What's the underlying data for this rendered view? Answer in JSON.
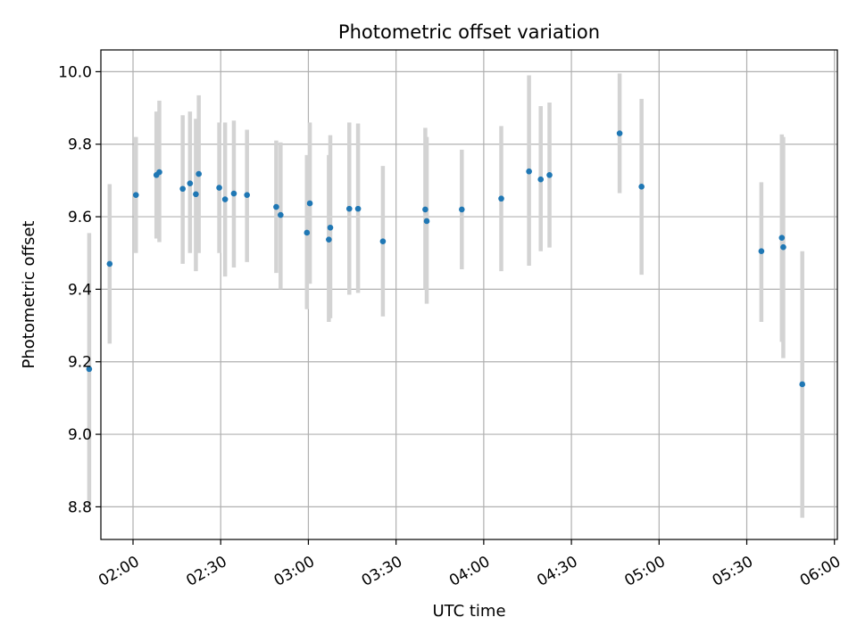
{
  "chart_data": {
    "type": "scatter",
    "title": "Photometric offset variation",
    "xlabel": "UTC time",
    "ylabel": "Photometric offset",
    "x_ticks": [
      "02:00",
      "02:30",
      "03:00",
      "03:30",
      "04:00",
      "04:30",
      "05:00",
      "05:30",
      "06:00"
    ],
    "y_ticks": [
      "8.8",
      "9.0",
      "9.2",
      "9.4",
      "9.6",
      "9.8",
      "10.0"
    ],
    "xlim": [
      "01:49",
      "06:01"
    ],
    "ylim": [
      8.71,
      10.06
    ],
    "grid": true,
    "marker_color": "#1f77b4",
    "errorbar_color": "#d3d3d3",
    "points": [
      {
        "x": "01:45:00",
        "y": 9.18,
        "ylo": 8.8,
        "yhi": 9.555
      },
      {
        "x": "01:52:00",
        "y": 9.47,
        "ylo": 9.25,
        "yhi": 9.69
      },
      {
        "x": "02:01:00",
        "y": 9.66,
        "ylo": 9.5,
        "yhi": 9.82
      },
      {
        "x": "02:08:00",
        "y": 9.715,
        "ylo": 9.54,
        "yhi": 9.89
      },
      {
        "x": "02:09:00",
        "y": 9.723,
        "ylo": 9.53,
        "yhi": 9.92
      },
      {
        "x": "02:17:00",
        "y": 9.677,
        "ylo": 9.47,
        "yhi": 9.88
      },
      {
        "x": "02:19:30",
        "y": 9.692,
        "ylo": 9.5,
        "yhi": 9.89
      },
      {
        "x": "02:21:30",
        "y": 9.662,
        "ylo": 9.45,
        "yhi": 9.87
      },
      {
        "x": "02:22:30",
        "y": 9.718,
        "ylo": 9.5,
        "yhi": 9.935
      },
      {
        "x": "02:29:30",
        "y": 9.68,
        "ylo": 9.5,
        "yhi": 9.86
      },
      {
        "x": "02:31:30",
        "y": 9.648,
        "ylo": 9.435,
        "yhi": 9.86
      },
      {
        "x": "02:34:30",
        "y": 9.664,
        "ylo": 9.46,
        "yhi": 9.865
      },
      {
        "x": "02:39:00",
        "y": 9.66,
        "ylo": 9.475,
        "yhi": 9.84
      },
      {
        "x": "02:49:00",
        "y": 9.627,
        "ylo": 9.445,
        "yhi": 9.81
      },
      {
        "x": "02:50:30",
        "y": 9.605,
        "ylo": 9.4,
        "yhi": 9.805
      },
      {
        "x": "02:59:30",
        "y": 9.556,
        "ylo": 9.345,
        "yhi": 9.77
      },
      {
        "x": "03:00:30",
        "y": 9.637,
        "ylo": 9.415,
        "yhi": 9.86
      },
      {
        "x": "03:07:00",
        "y": 9.537,
        "ylo": 9.31,
        "yhi": 9.77
      },
      {
        "x": "03:07:30",
        "y": 9.57,
        "ylo": 9.32,
        "yhi": 9.825
      },
      {
        "x": "03:14:00",
        "y": 9.622,
        "ylo": 9.385,
        "yhi": 9.86
      },
      {
        "x": "03:17:00",
        "y": 9.622,
        "ylo": 9.39,
        "yhi": 9.857
      },
      {
        "x": "03:25:30",
        "y": 9.532,
        "ylo": 9.325,
        "yhi": 9.74
      },
      {
        "x": "03:40:00",
        "y": 9.62,
        "ylo": 9.4,
        "yhi": 9.845
      },
      {
        "x": "03:40:30",
        "y": 9.588,
        "ylo": 9.36,
        "yhi": 9.82
      },
      {
        "x": "03:52:30",
        "y": 9.62,
        "ylo": 9.455,
        "yhi": 9.785
      },
      {
        "x": "04:06:00",
        "y": 9.65,
        "ylo": 9.45,
        "yhi": 9.85
      },
      {
        "x": "04:15:30",
        "y": 9.725,
        "ylo": 9.465,
        "yhi": 9.99
      },
      {
        "x": "04:19:30",
        "y": 9.703,
        "ylo": 9.505,
        "yhi": 9.905
      },
      {
        "x": "04:22:30",
        "y": 9.715,
        "ylo": 9.515,
        "yhi": 9.915
      },
      {
        "x": "04:46:30",
        "y": 9.83,
        "ylo": 9.665,
        "yhi": 9.995
      },
      {
        "x": "04:54:00",
        "y": 9.683,
        "ylo": 9.44,
        "yhi": 9.925
      },
      {
        "x": "05:35:00",
        "y": 9.505,
        "ylo": 9.31,
        "yhi": 9.695
      },
      {
        "x": "05:42:00",
        "y": 9.542,
        "ylo": 9.255,
        "yhi": 9.827
      },
      {
        "x": "05:42:30",
        "y": 9.516,
        "ylo": 9.21,
        "yhi": 9.82
      },
      {
        "x": "05:49:00",
        "y": 9.138,
        "ylo": 8.77,
        "yhi": 9.505
      }
    ]
  }
}
